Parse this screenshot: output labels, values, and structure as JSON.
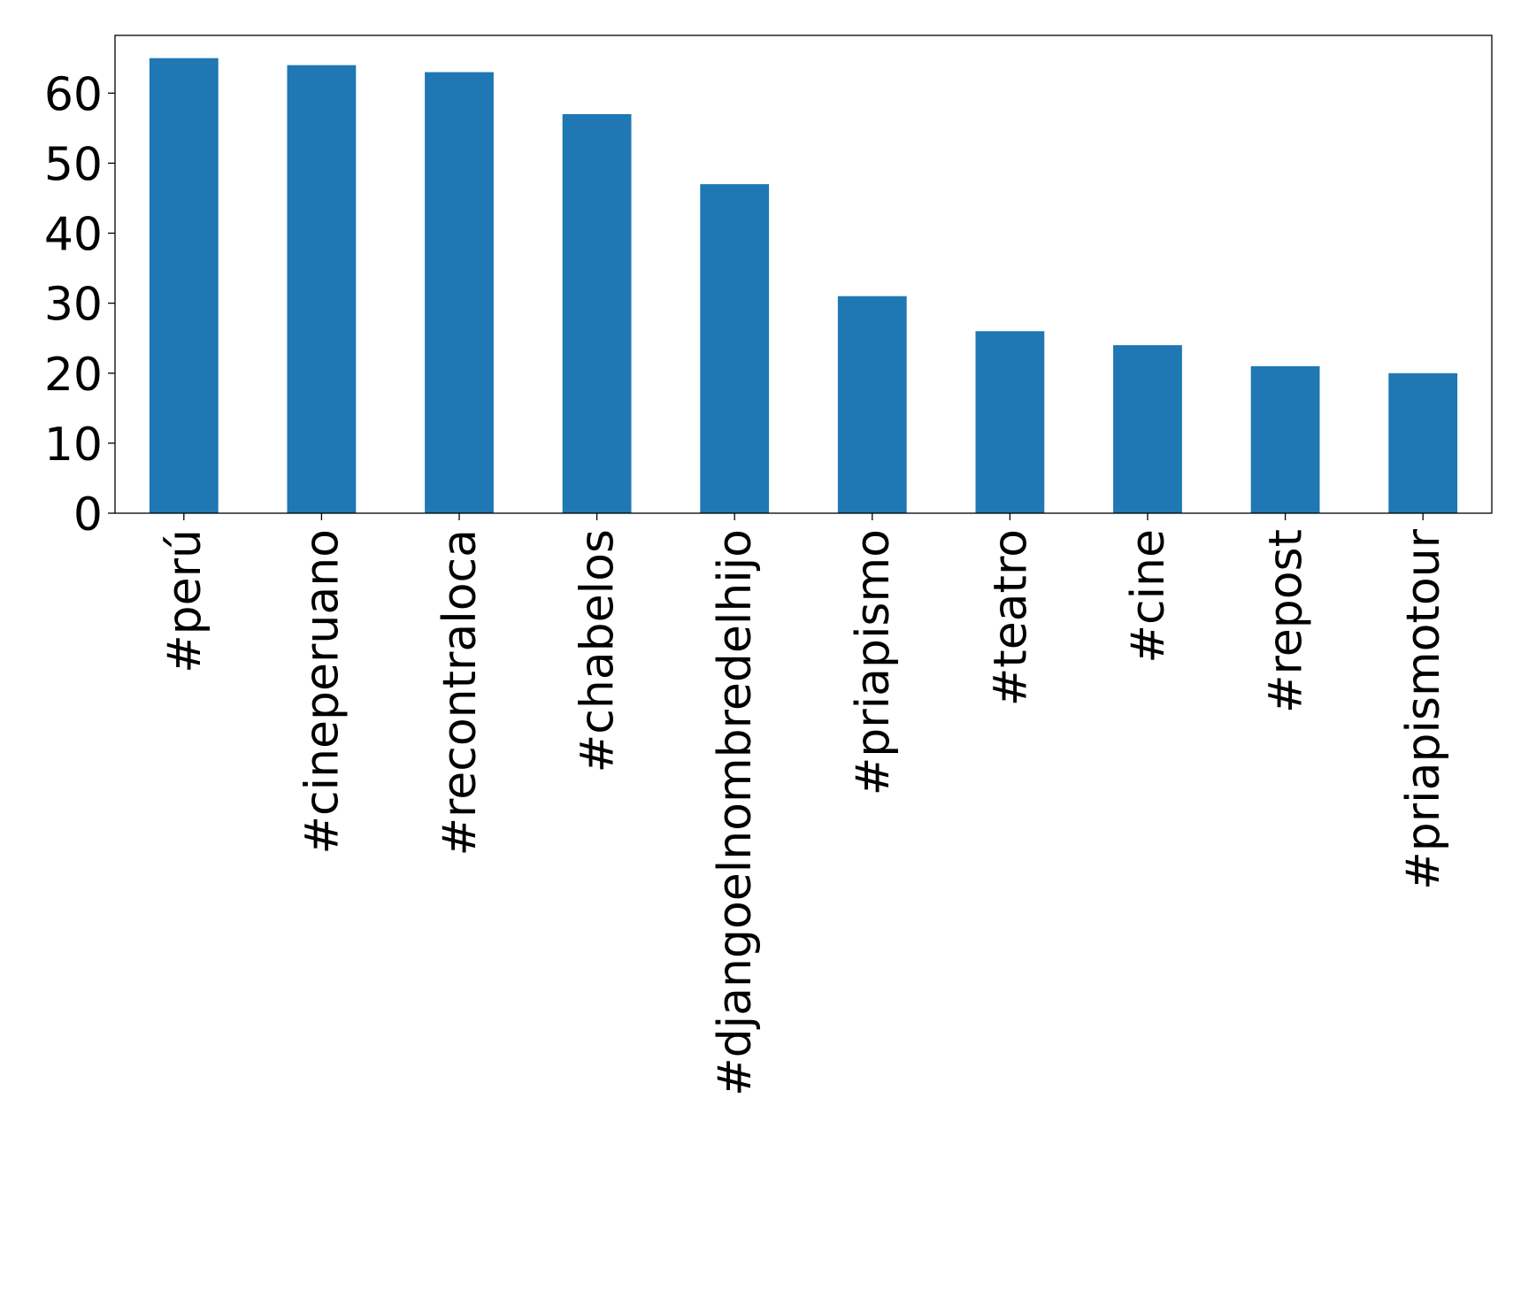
{
  "chart_data": {
    "type": "bar",
    "title": "",
    "xlabel": "",
    "ylabel": "",
    "categories": [
      "#perú",
      "#cineperuano",
      "#recontraloca",
      "#chabelos",
      "#djangoelnombredelhijo",
      "#priapismo",
      "#teatro",
      "#cine",
      "#repost",
      "#priapismotour"
    ],
    "values": [
      65,
      64,
      63,
      57,
      47,
      31,
      26,
      24,
      21,
      20
    ],
    "ylim": [
      0,
      68.25
    ],
    "yticks": [
      0,
      10,
      20,
      30,
      40,
      50,
      60
    ],
    "grid": false,
    "legend": "none",
    "bar_color": "#1f77b4"
  }
}
